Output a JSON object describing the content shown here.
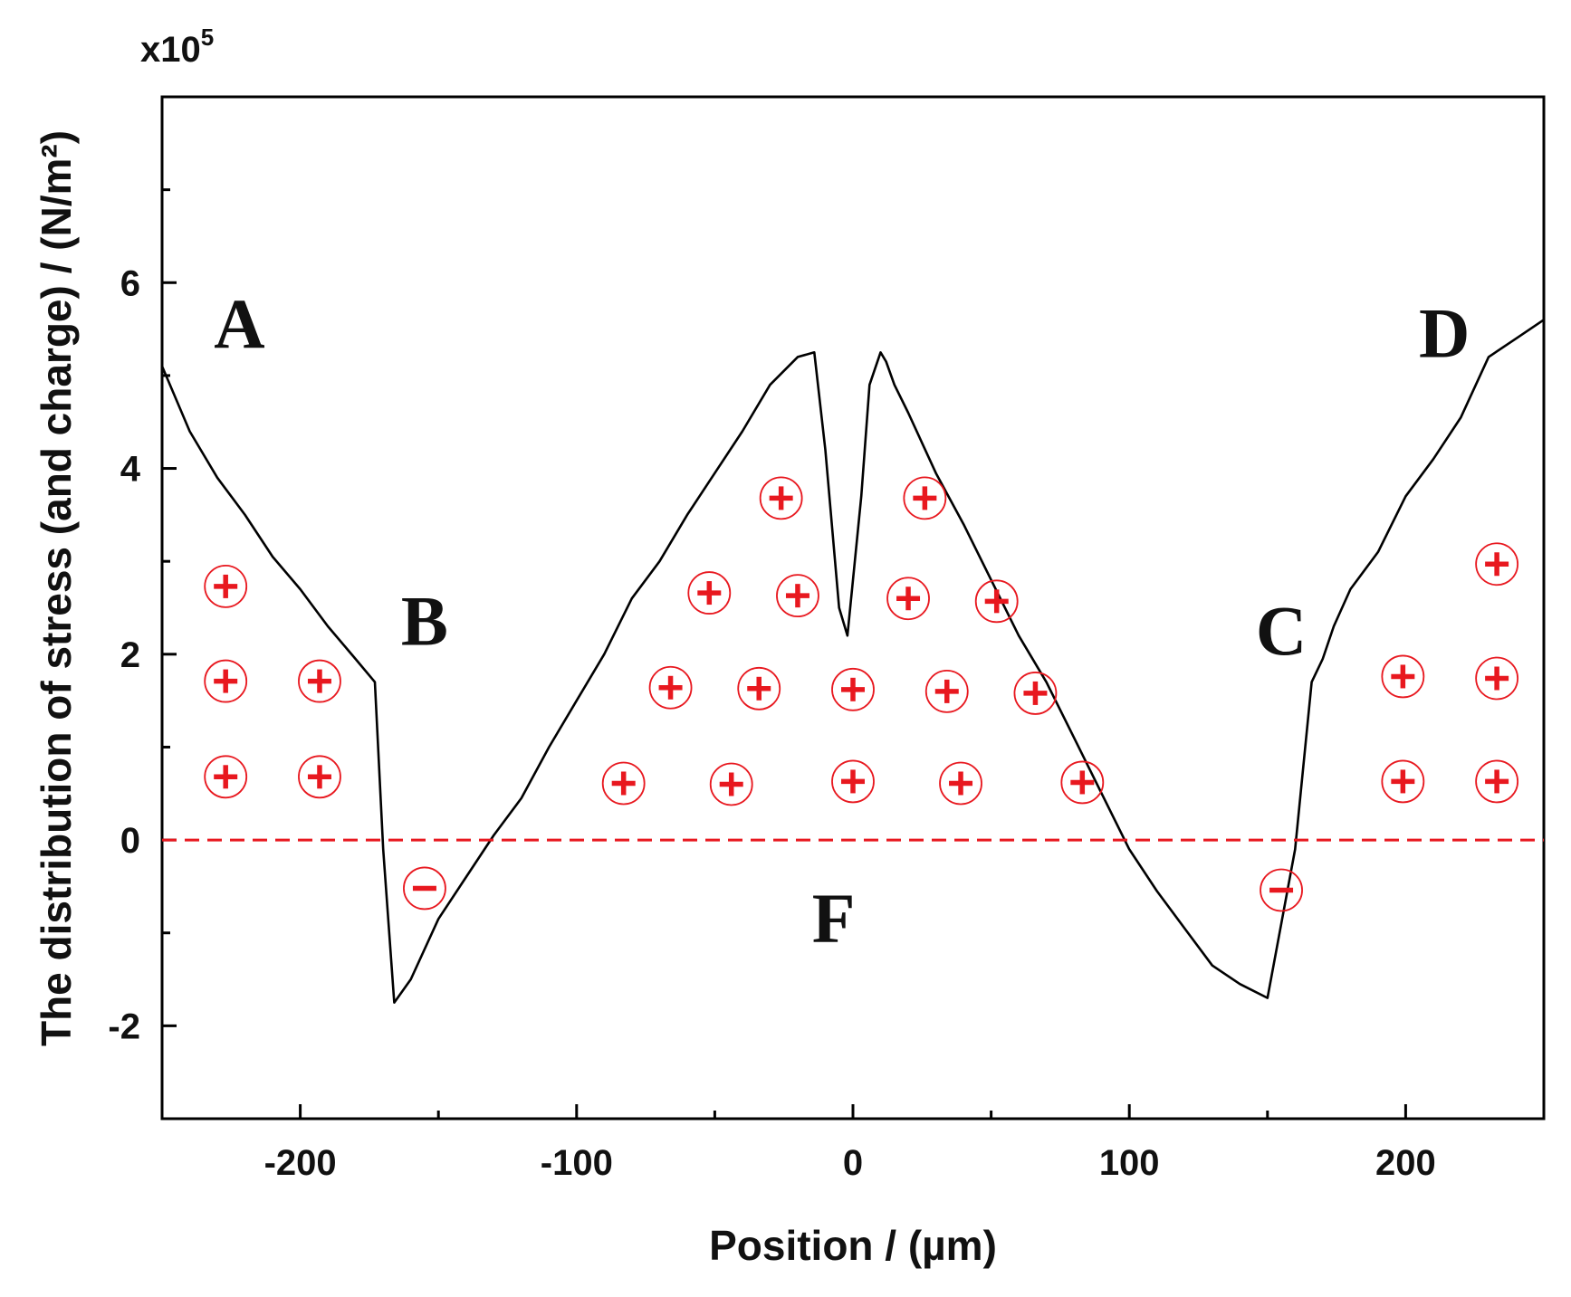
{
  "chart_data": {
    "type": "line",
    "title": "",
    "xlabel": "Position / (µm)",
    "ylabel": "The distribution of stress (and charge) / (N/m²)",
    "y_multiplier_label": "x10",
    "y_multiplier_exponent": "5",
    "xlim": [
      -250,
      250
    ],
    "ylim": [
      -3,
      8
    ],
    "x_ticks": [
      -200,
      -100,
      0,
      100,
      200
    ],
    "x_tick_labels": [
      "-200",
      "-100",
      "0",
      "100",
      "200"
    ],
    "y_ticks": [
      -2,
      0,
      2,
      4,
      6
    ],
    "y_tick_labels": [
      "-2",
      "0",
      "2",
      "4",
      "6"
    ],
    "colors": {
      "curve": "#000000",
      "zero_line": "#e8181f",
      "charge": "#e8181f"
    },
    "series": [
      {
        "name": "stress",
        "x": [
          -250,
          -240,
          -230,
          -220,
          -210,
          -200,
          -190,
          -180,
          -173,
          -170,
          -166,
          -160,
          -150,
          -140,
          -130,
          -120,
          -110,
          -100,
          -90,
          -80,
          -70,
          -60,
          -50,
          -40,
          -30,
          -20,
          -14,
          -10,
          -5,
          -2,
          3,
          6,
          10,
          12,
          15,
          20,
          30,
          40,
          50,
          60,
          70,
          80,
          90,
          100,
          110,
          120,
          130,
          140,
          150,
          160,
          166,
          170,
          174,
          180,
          190,
          200,
          210,
          220,
          230,
          240,
          250
        ],
        "y": [
          5.1,
          4.4,
          3.9,
          3.5,
          3.05,
          2.7,
          2.3,
          1.95,
          1.7,
          -0.1,
          -1.75,
          -1.5,
          -0.85,
          -0.4,
          0.05,
          0.45,
          1.0,
          1.5,
          2.0,
          2.6,
          3.0,
          3.5,
          3.95,
          4.4,
          4.9,
          5.2,
          5.25,
          4.2,
          2.5,
          2.2,
          3.7,
          4.9,
          5.25,
          5.15,
          4.9,
          4.6,
          3.95,
          3.4,
          2.8,
          2.2,
          1.7,
          1.1,
          0.5,
          -0.1,
          -0.55,
          -0.95,
          -1.35,
          -1.55,
          -1.7,
          -0.1,
          1.7,
          1.95,
          2.3,
          2.7,
          3.1,
          3.7,
          4.1,
          4.55,
          5.2,
          5.4,
          5.6
        ]
      },
      {
        "name": "zero",
        "x": [
          -250,
          250
        ],
        "y": [
          0,
          0
        ],
        "style": "dashed"
      }
    ],
    "region_labels": [
      {
        "text": "A",
        "x": -222,
        "y": 5.3
      },
      {
        "text": "B",
        "x": -155,
        "y": 2.1
      },
      {
        "text": "C",
        "x": 155,
        "y": 2.0
      },
      {
        "text": "D",
        "x": 214,
        "y": 5.2
      },
      {
        "text": "F",
        "x": -7,
        "y": -1.1
      }
    ],
    "charges": [
      {
        "sign": "+",
        "x": -227,
        "y": 2.73
      },
      {
        "sign": "+",
        "x": -227,
        "y": 1.71
      },
      {
        "sign": "+",
        "x": -193,
        "y": 1.71
      },
      {
        "sign": "+",
        "x": -227,
        "y": 0.68
      },
      {
        "sign": "+",
        "x": -193,
        "y": 0.68
      },
      {
        "sign": "-",
        "x": -155,
        "y": -0.52
      },
      {
        "sign": "+",
        "x": -26,
        "y": 3.68
      },
      {
        "sign": "+",
        "x": 26,
        "y": 3.68
      },
      {
        "sign": "+",
        "x": -52,
        "y": 2.66
      },
      {
        "sign": "+",
        "x": -20,
        "y": 2.63
      },
      {
        "sign": "+",
        "x": 20,
        "y": 2.6
      },
      {
        "sign": "+",
        "x": 52,
        "y": 2.57
      },
      {
        "sign": "+",
        "x": -66,
        "y": 1.64
      },
      {
        "sign": "+",
        "x": -34,
        "y": 1.63
      },
      {
        "sign": "+",
        "x": 0,
        "y": 1.62
      },
      {
        "sign": "+",
        "x": 34,
        "y": 1.6
      },
      {
        "sign": "+",
        "x": 66,
        "y": 1.58
      },
      {
        "sign": "+",
        "x": -83,
        "y": 0.61
      },
      {
        "sign": "+",
        "x": -44,
        "y": 0.6
      },
      {
        "sign": "+",
        "x": 0,
        "y": 0.63
      },
      {
        "sign": "+",
        "x": 39,
        "y": 0.61
      },
      {
        "sign": "+",
        "x": 83,
        "y": 0.62
      },
      {
        "sign": "-",
        "x": 155,
        "y": -0.54
      },
      {
        "sign": "+",
        "x": 233,
        "y": 2.97
      },
      {
        "sign": "+",
        "x": 199,
        "y": 1.76
      },
      {
        "sign": "+",
        "x": 233,
        "y": 1.74
      },
      {
        "sign": "+",
        "x": 199,
        "y": 0.63
      },
      {
        "sign": "+",
        "x": 233,
        "y": 0.63
      }
    ]
  }
}
